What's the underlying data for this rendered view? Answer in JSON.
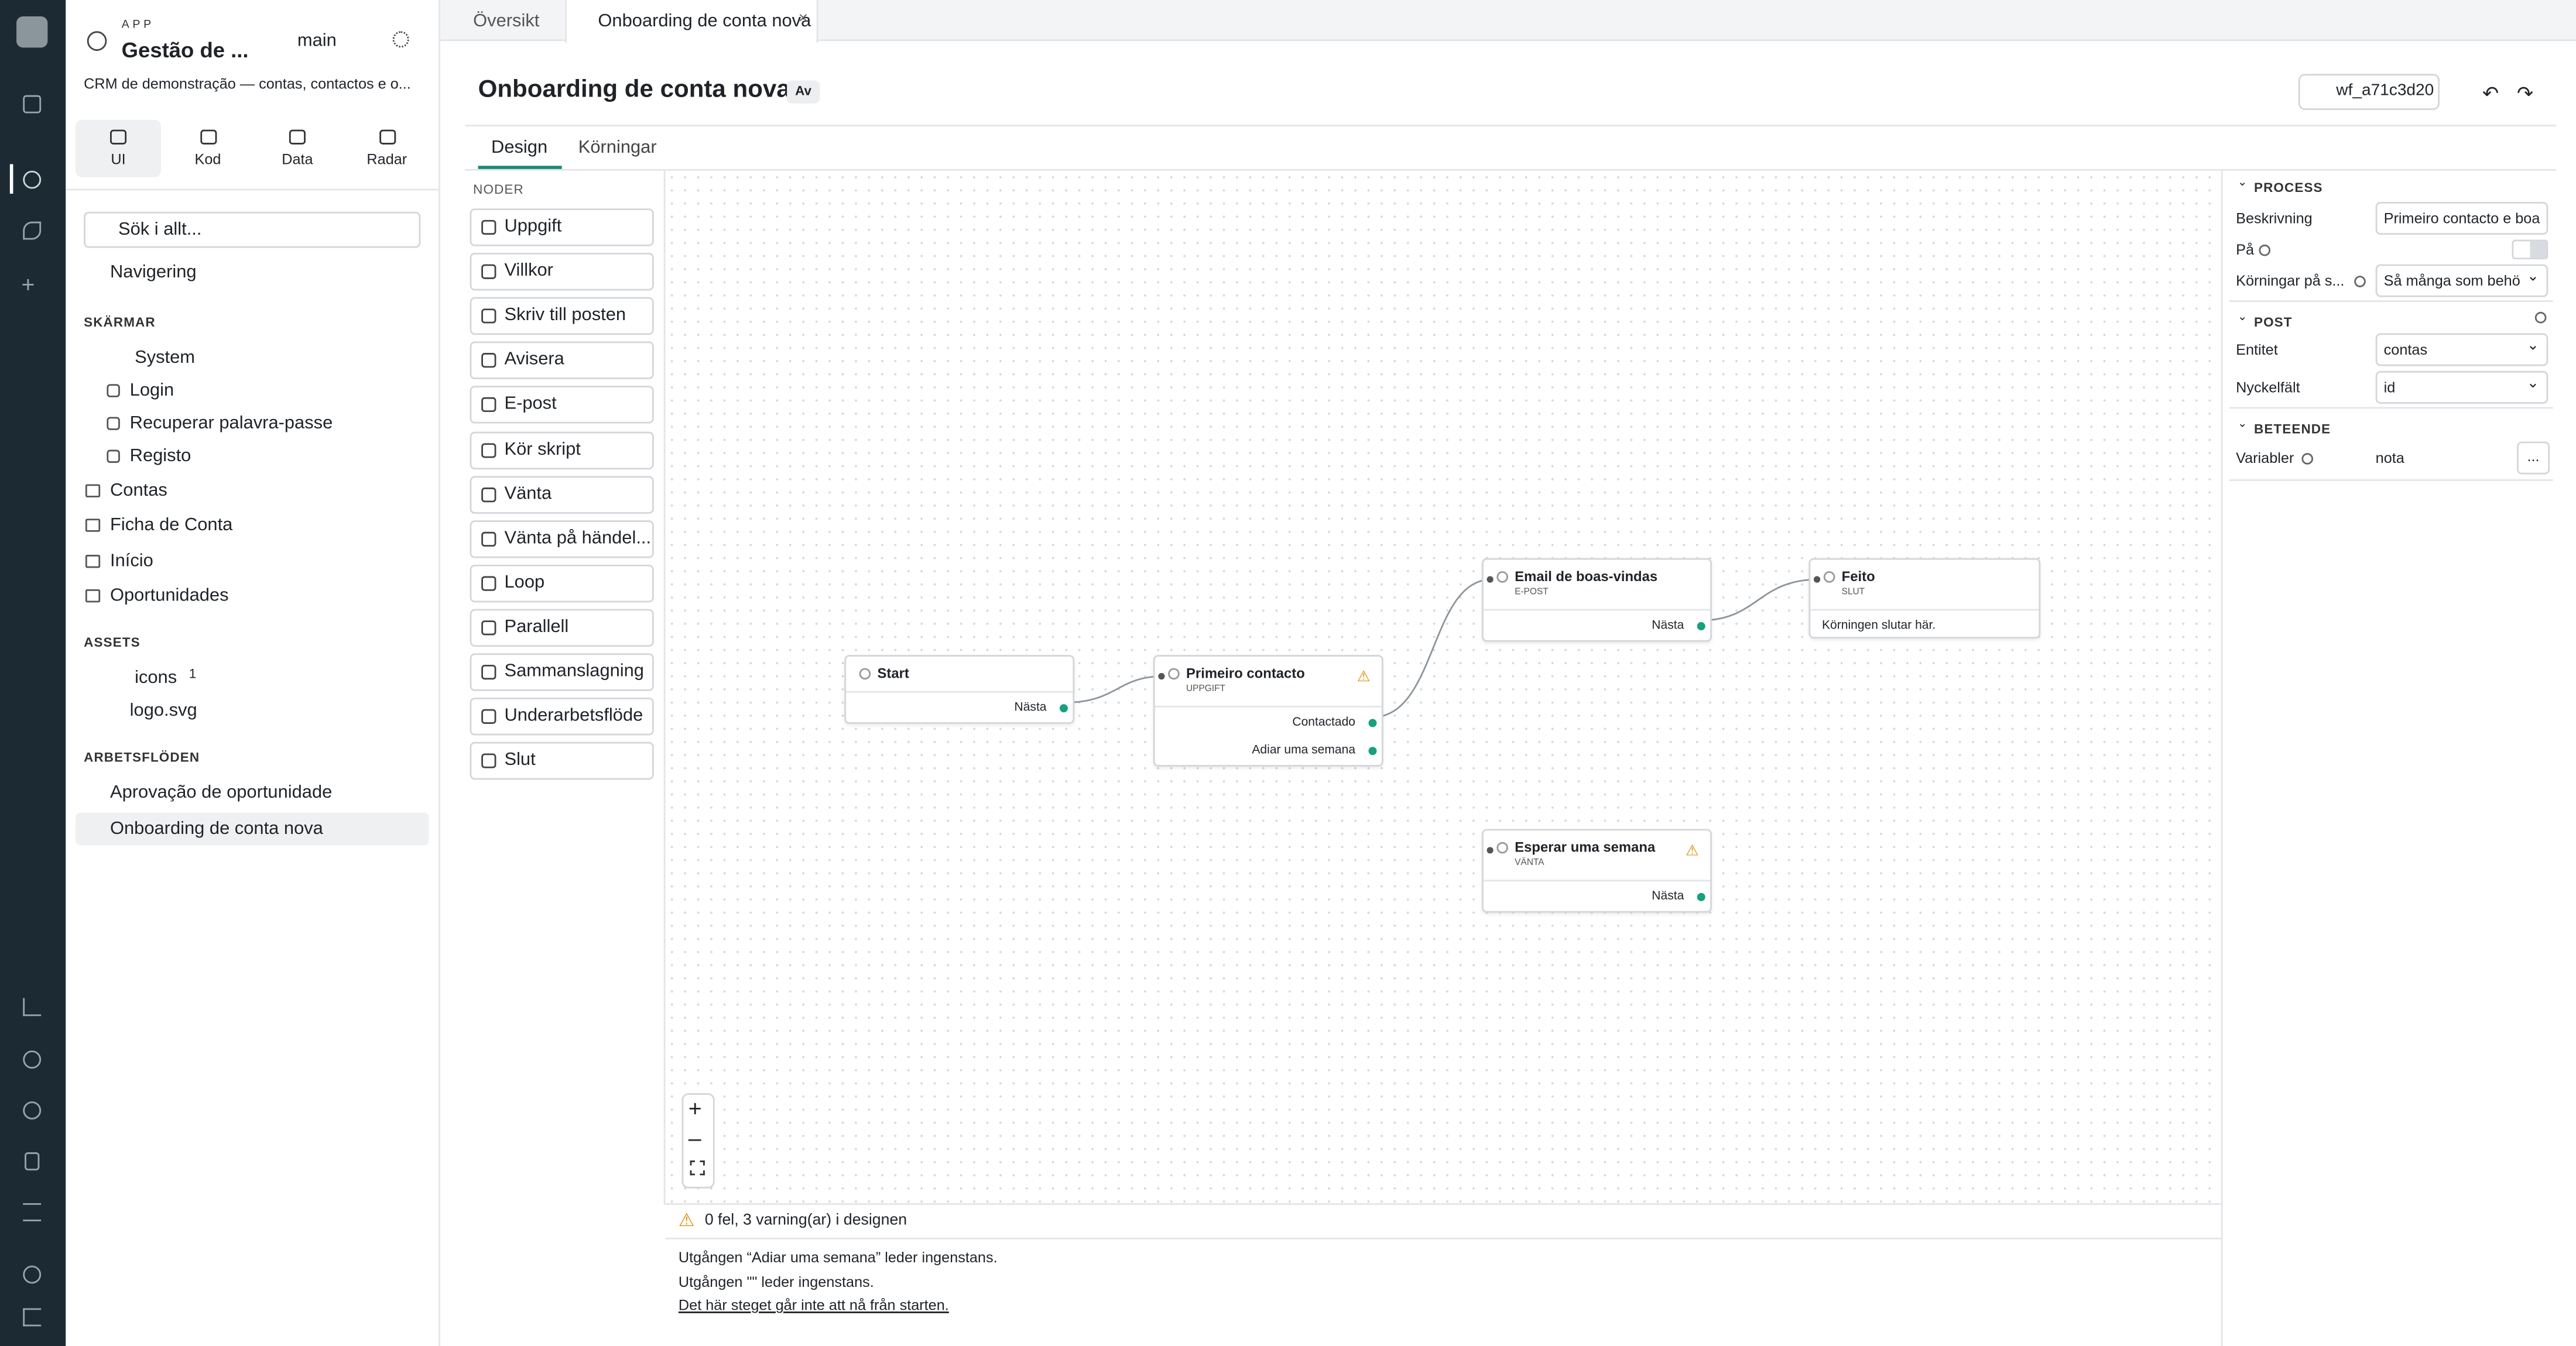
{
  "app": {
    "label": "APP",
    "name": "Gestão de ...",
    "branch": "main",
    "description": "CRM de demonstração — contas, contactos e o...",
    "modes": [
      "UI",
      "Kod",
      "Data",
      "Radar"
    ]
  },
  "tabs": [
    "Översikt",
    "Onboarding de conta nova"
  ],
  "sidebar": {
    "search": "Sök i allt...",
    "navigation": "Navigering",
    "screens_heading": "SKÄRMAR",
    "system": "System",
    "system_children": [
      "Login",
      "Recuperar palavra-passe",
      "Registo"
    ],
    "screens": [
      "Contas",
      "Ficha de Conta",
      "Início",
      "Oportunidades"
    ],
    "assets_heading": "ASSETS",
    "folder": "icons",
    "folder_count": 1,
    "file": "logo.svg",
    "workflows_heading": "ARBETSFLÖDEN",
    "workflows": [
      "Aprovação de oportunidade",
      "Onboarding de conta nova"
    ]
  },
  "header": {
    "title": "Onboarding de conta nova",
    "badge": "Av",
    "id": "wf_a71c3d20",
    "tabs": [
      "Design",
      "Körningar"
    ]
  },
  "palette": {
    "heading": "NODER",
    "items": [
      "Uppgift",
      "Villkor",
      "Skriv till posten",
      "Avisera",
      "E-post",
      "Kör skript",
      "Vänta",
      "Vänta på händel...",
      "Loop",
      "Parallell",
      "Sammanslagning",
      "Underarbetsflöde",
      "Slut"
    ]
  },
  "nodes": [
    {
      "title": "Start",
      "outputs": [
        "Nästa"
      ]
    },
    {
      "title": "Primeiro contacto",
      "type": "UPPGIFT",
      "warning": true,
      "outputs": [
        "Contactado",
        "Adiar uma semana"
      ]
    },
    {
      "title": "Email de boas-vindas",
      "type": "E-POST",
      "outputs": [
        "Nästa"
      ]
    },
    {
      "title": "Feito",
      "type": "SLUT",
      "note": "Körningen slutar här."
    },
    {
      "title": "Esperar uma semana",
      "type": "VÄNTA",
      "warning": true,
      "outputs": [
        "Nästa"
      ]
    }
  ],
  "problems": {
    "summary": "0 fel, 3 varning(ar) i designen",
    "messages": [
      "Utgången “Adiar uma semana” leder ingenstans.",
      "Utgången \"\" leder ingenstans.",
      "Det här steget går inte att nå från starten."
    ]
  },
  "properties": {
    "process": {
      "heading": "PROCESS",
      "description_label": "Beskrivning",
      "description": "Primeiro contacto e boa",
      "enabled_label": "På",
      "runs_label": "Körningar på s...",
      "runs": "Så många som behö"
    },
    "post": {
      "heading": "POST",
      "entity_label": "Entitet",
      "entity": "contas",
      "key_label": "Nyckelfält",
      "key": "id"
    },
    "behavior": {
      "heading": "BETEENDE",
      "variables_label": "Variabler",
      "variables": "nota",
      "more": "..."
    }
  }
}
